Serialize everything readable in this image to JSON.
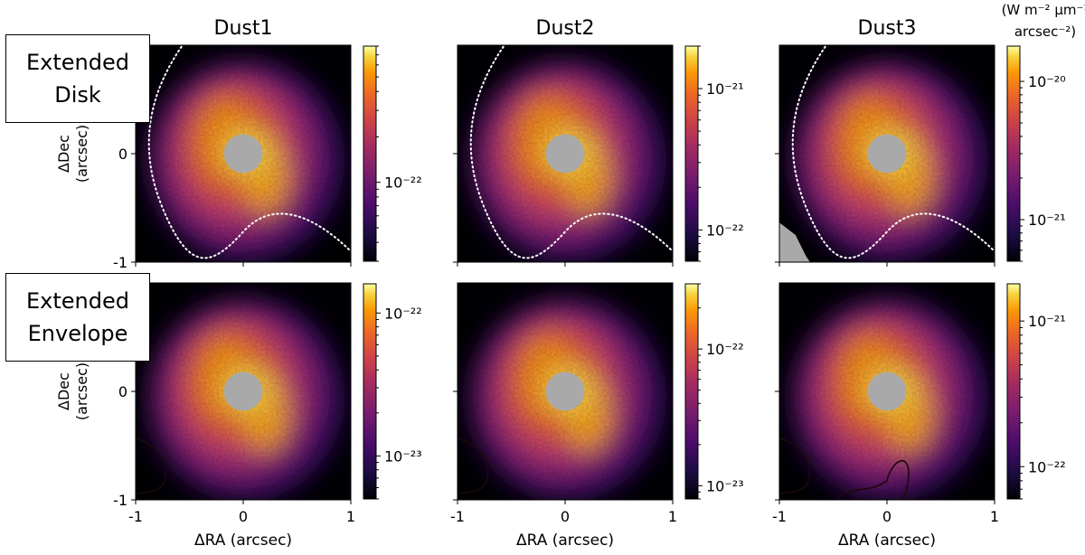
{
  "chart_data": {
    "type": "heatmap",
    "title": "",
    "columns": [
      "Dust1",
      "Dust2",
      "Dust3"
    ],
    "rows": [
      {
        "label_lines": [
          "Extended",
          "Disk"
        ],
        "contour": "dotted white"
      },
      {
        "label_lines": [
          "Extended",
          "Envelope"
        ],
        "contour": "solid black"
      }
    ],
    "xlabel": "ΔRA (arcsec)",
    "ylabel_lines": [
      "ΔDec",
      "(arcsec)"
    ],
    "xlim": [
      -1,
      1
    ],
    "ylim": [
      -1,
      1
    ],
    "x_ticks": [
      -1,
      0,
      1
    ],
    "x_tick_labels": [
      "-1",
      "0",
      "1"
    ],
    "y_ticks": [
      -1,
      0
    ],
    "y_tick_labels": [
      "-1",
      "0"
    ],
    "colormap": "inferno",
    "colorbar_scale": "log",
    "colorbar_unit_lines": [
      "(W m⁻² μm⁻¹",
      "arcsec⁻²)"
    ],
    "masked_center": {
      "radius_arcsec": 0.18,
      "color": "#a9a9a9"
    },
    "panels": [
      {
        "row": 0,
        "col": 0,
        "cbar_range": [
          3e-23,
          8e-22
        ],
        "cbar_labels": [
          {
            "text": "10⁻²²",
            "value": 1e-22
          }
        ]
      },
      {
        "row": 0,
        "col": 1,
        "cbar_range": [
          6e-23,
          2e-21
        ],
        "cbar_labels": [
          {
            "text": "10⁻²²",
            "value": 1e-22
          },
          {
            "text": "10⁻²¹",
            "value": 1e-21
          }
        ]
      },
      {
        "row": 0,
        "col": 2,
        "cbar_range": [
          5e-22,
          1.8e-20
        ],
        "cbar_labels": [
          {
            "text": "10⁻²¹",
            "value": 1e-21
          },
          {
            "text": "10⁻²⁰",
            "value": 1e-20
          }
        ]
      },
      {
        "row": 1,
        "col": 0,
        "cbar_range": [
          5e-24,
          1.6e-22
        ],
        "cbar_labels": [
          {
            "text": "10⁻²³",
            "value": 1e-23
          },
          {
            "text": "10⁻²²",
            "value": 1e-22
          }
        ]
      },
      {
        "row": 1,
        "col": 1,
        "cbar_range": [
          8e-24,
          3e-22
        ],
        "cbar_labels": [
          {
            "text": "10⁻²³",
            "value": 1e-23
          },
          {
            "text": "10⁻²²",
            "value": 1e-22
          }
        ]
      },
      {
        "row": 1,
        "col": 2,
        "cbar_range": [
          6e-23,
          1.8e-21
        ],
        "cbar_labels": [
          {
            "text": "10⁻²²",
            "value": 1e-22
          },
          {
            "text": "10⁻²¹",
            "value": 1e-21
          }
        ]
      }
    ]
  },
  "colors": {
    "mask": "#a9a9a9",
    "background": "#000004",
    "contour_dotted": "#ffffff",
    "contour_solid": "#1a0a0a"
  }
}
